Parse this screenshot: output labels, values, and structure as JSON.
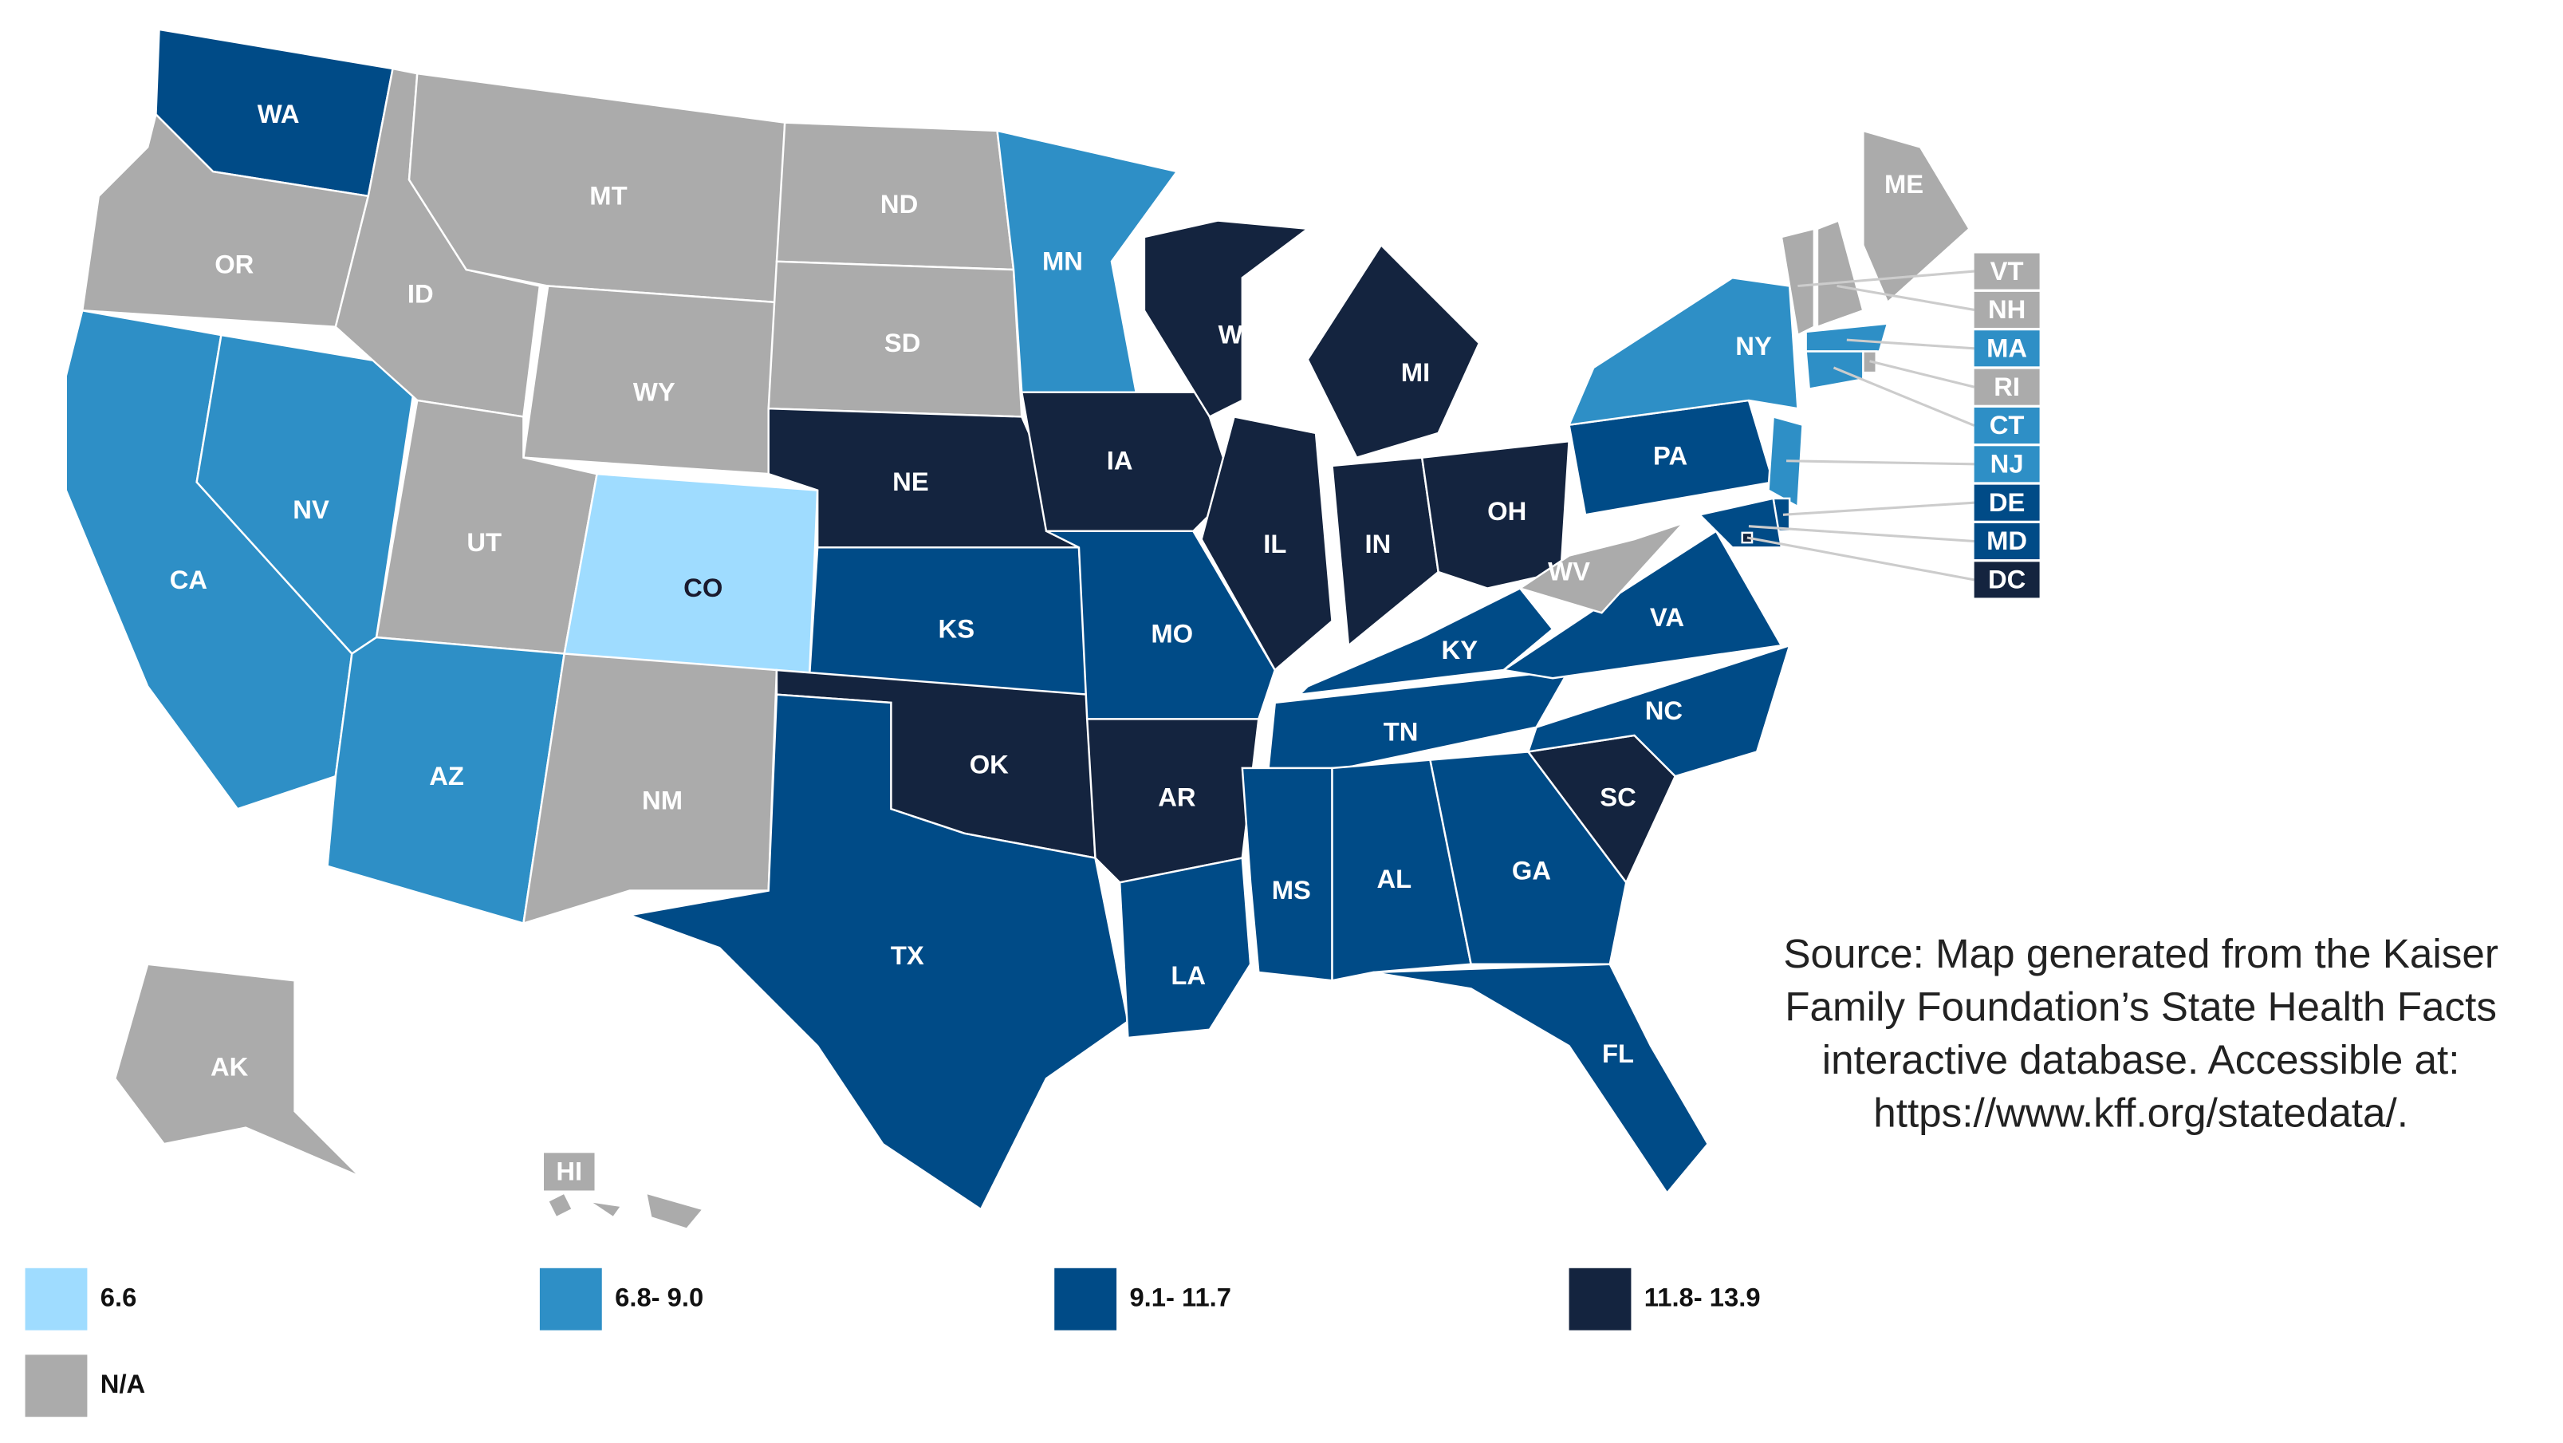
{
  "map": {
    "states": [
      {
        "label": "WA",
        "color": "#004b87"
      },
      {
        "label": "OR",
        "color": "#ababab"
      },
      {
        "label": "CA",
        "color": "#2e8fc6"
      },
      {
        "label": "NV",
        "color": "#2e8fc6"
      },
      {
        "label": "ID",
        "color": "#ababab"
      },
      {
        "label": "MT",
        "color": "#ababab"
      },
      {
        "label": "WY",
        "color": "#ababab"
      },
      {
        "label": "UT",
        "color": "#ababab"
      },
      {
        "label": "CO",
        "color": "#9fdcff"
      },
      {
        "label": "AZ",
        "color": "#2e8fc6"
      },
      {
        "label": "NM",
        "color": "#ababab"
      },
      {
        "label": "ND",
        "color": "#ababab"
      },
      {
        "label": "SD",
        "color": "#ababab"
      },
      {
        "label": "NE",
        "color": "#14243f"
      },
      {
        "label": "KS",
        "color": "#004b87"
      },
      {
        "label": "OK",
        "color": "#14243f"
      },
      {
        "label": "TX",
        "color": "#004b87"
      },
      {
        "label": "MN",
        "color": "#2e8fc6"
      },
      {
        "label": "IA",
        "color": "#14243f"
      },
      {
        "label": "MO",
        "color": "#004b87"
      },
      {
        "label": "AR",
        "color": "#14243f"
      },
      {
        "label": "LA",
        "color": "#004b87"
      },
      {
        "label": "WI",
        "color": "#14243f"
      },
      {
        "label": "IL",
        "color": "#14243f"
      },
      {
        "label": "MI",
        "color": "#14243f"
      },
      {
        "label": "IN",
        "color": "#14243f"
      },
      {
        "label": "OH",
        "color": "#14243f"
      },
      {
        "label": "KY",
        "color": "#004b87"
      },
      {
        "label": "TN",
        "color": "#004b87"
      },
      {
        "label": "MS",
        "color": "#004b87"
      },
      {
        "label": "AL",
        "color": "#004b87"
      },
      {
        "label": "GA",
        "color": "#004b87"
      },
      {
        "label": "FL",
        "color": "#004b87"
      },
      {
        "label": "SC",
        "color": "#14243f"
      },
      {
        "label": "NC",
        "color": "#004b87"
      },
      {
        "label": "VA",
        "color": "#004b87"
      },
      {
        "label": "WV",
        "color": "#ababab"
      },
      {
        "label": "PA",
        "color": "#004b87"
      },
      {
        "label": "NY",
        "color": "#2e8fc6"
      },
      {
        "label": "ME",
        "color": "#ababab"
      },
      {
        "label": "VT",
        "color": "#ababab",
        "callout": true
      },
      {
        "label": "NH",
        "color": "#ababab",
        "callout": true
      },
      {
        "label": "MA",
        "color": "#2e8fc6",
        "callout": true
      },
      {
        "label": "RI",
        "color": "#ababab",
        "callout": true
      },
      {
        "label": "CT",
        "color": "#2e8fc6",
        "callout": true
      },
      {
        "label": "NJ",
        "color": "#2e8fc6",
        "callout": true
      },
      {
        "label": "DE",
        "color": "#004b87",
        "callout": true
      },
      {
        "label": "MD",
        "color": "#004b87",
        "callout": true
      },
      {
        "label": "DC",
        "color": "#14243f",
        "callout": true
      },
      {
        "label": "AK",
        "color": "#ababab"
      },
      {
        "label": "HI",
        "color": "#ababab",
        "label_box": true
      }
    ],
    "legend": [
      {
        "label": "6.6",
        "color": "#9fdcff"
      },
      {
        "label": "6.8- 9.0",
        "color": "#2e8fc6"
      },
      {
        "label": "9.1- 11.7",
        "color": "#004b87"
      },
      {
        "label": "11.8- 13.9",
        "color": "#14243f"
      },
      {
        "label": "N/A",
        "color": "#ababab"
      }
    ]
  },
  "source": [
    "Source: Map generated from the Kaiser",
    "Family Foundation’s State Health Facts",
    "interactive database. Accessible at:",
    "https://www.kff.org/statedata/."
  ]
}
